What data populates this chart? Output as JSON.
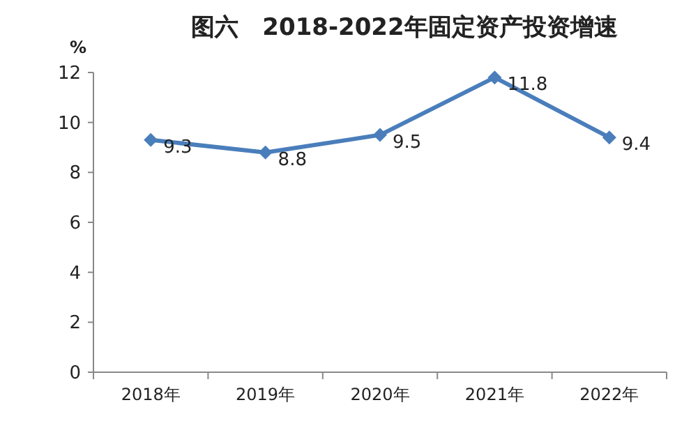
{
  "chart_data": {
    "type": "line",
    "title": "图六　2018-2022年固定资产投资增速",
    "ylabel": "%",
    "categories": [
      "2018年",
      "2019年",
      "2020年",
      "2021年",
      "2022年"
    ],
    "series": [
      {
        "color": "#4a7ebb",
        "values": [
          9.3,
          8.8,
          9.5,
          11.8,
          9.4
        ]
      }
    ],
    "ylim": [
      0,
      12
    ],
    "yticks": [
      0,
      2,
      4,
      6,
      8,
      10,
      12
    ],
    "marker": "diamond",
    "line_style": "solid",
    "data_labels": true
  }
}
